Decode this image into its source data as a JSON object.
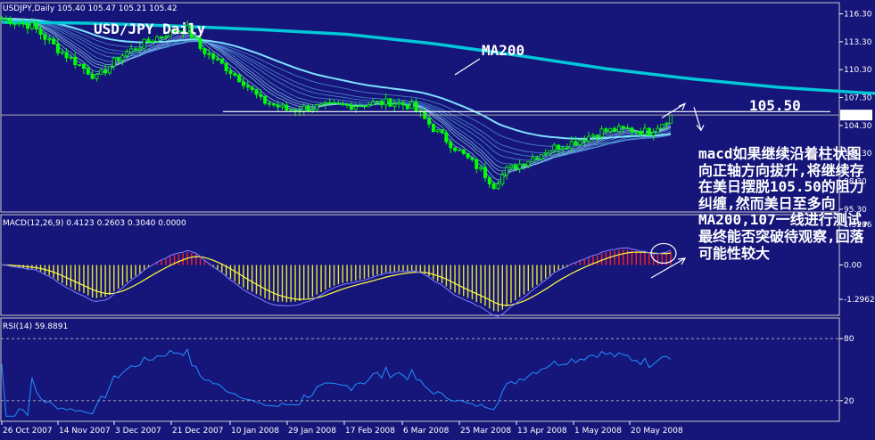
{
  "chart_data": [
    {
      "type": "line",
      "header": "USDJPY,Daily  105.40 105.47 105.21 105.42",
      "title": "USD/JPY Daily",
      "yticks": [
        "116.30",
        "113.30",
        "110.30",
        "107.30",
        "104.30",
        "101.30",
        "98.30",
        "95.30"
      ],
      "ylim": [
        95.0,
        117.5
      ],
      "current_price_label": "105.42",
      "resistance_level": 105.5,
      "resistance_label": "105.50",
      "ma200_label": "MA200",
      "colors": {
        "background": "#16167a",
        "candles": "#00ff00",
        "ma200": "#00c8d8",
        "ribbon": "#7fd6ff",
        "text": "#ffffff"
      },
      "ma200": [
        [
          0,
          115.4
        ],
        [
          20,
          115.3
        ],
        [
          40,
          115.0
        ],
        [
          60,
          114.6
        ],
        [
          80,
          114.1
        ],
        [
          100,
          113.1
        ],
        [
          120,
          111.8
        ],
        [
          140,
          110.4
        ],
        [
          160,
          109.3
        ],
        [
          180,
          108.4
        ],
        [
          200,
          107.8
        ],
        [
          230,
          107.2
        ],
        [
          260,
          106.8
        ],
        [
          292,
          106.6
        ]
      ]
    },
    {
      "type": "bar",
      "label": "MACD(12,26,9) 0.4123 0.2603 0.3040 0.0000",
      "yticks": [
        "1.5286",
        "0.00",
        "-1.2962"
      ],
      "ylim": [
        -1.9,
        1.9
      ],
      "colors": {
        "positive": "#ff2020",
        "negative": "#e8e830",
        "signal": "#ffff40",
        "macd_line": "#8080ff"
      }
    },
    {
      "type": "line",
      "label": "RSI(14) 59.8891",
      "yticks": [
        "80",
        "20"
      ],
      "ylim": [
        0,
        100
      ],
      "colors": {
        "line": "#2090ff",
        "levels": "#bbbbbb"
      }
    }
  ],
  "x_labels": [
    "26 Oct 2007",
    "14 Nov 2007",
    "3 Dec 2007",
    "21 Dec 2007",
    "10 Jan 2008",
    "29 Jan 2008",
    "17 Feb 2008",
    "6 Mar 2008",
    "25 Mar 2008",
    "13 Apr 2008",
    "1 May 2008",
    "20 May 2008"
  ],
  "annotation": "macd如果继续沿着柱状图向正轴方向拔升,将继续存在美日摆脱105.50的阻力纠缠,然而美日至多向MA200,107一线进行测试,最终能否突破待观察,回落可能性较大"
}
